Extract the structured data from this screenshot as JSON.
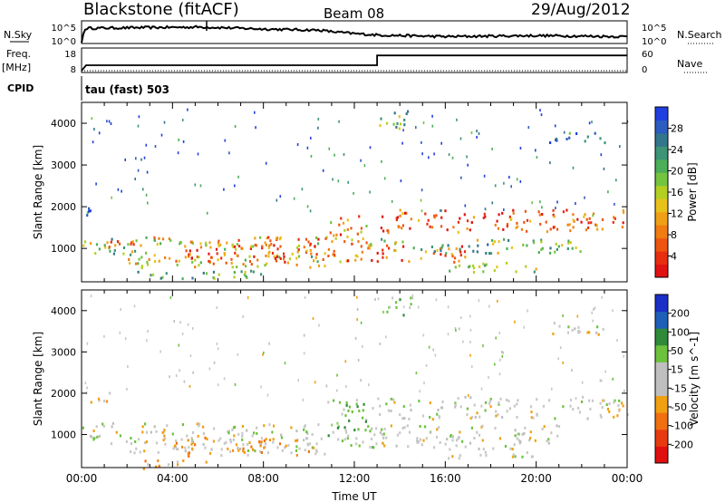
{
  "header": {
    "station": "Blackstone (fitACF)",
    "beam": "Beam 08",
    "date": "29/Aug/2012"
  },
  "top_panel": {
    "nsky_label": "N.Sky",
    "nsearch_label": "N.Search",
    "left_ticks": [
      "10^5",
      "10^0"
    ],
    "right_ticks": [
      "10^5",
      "10^0"
    ],
    "freq_label": "Freq.",
    "freq_unit": "[MHz]",
    "freq_ticks": [
      "18",
      "8"
    ],
    "nave_label": "Nave",
    "nave_ticks": [
      "60",
      "0"
    ],
    "cpid_label": "CPID",
    "cpid_value": "tau (fast) 503"
  },
  "chart_data": [
    {
      "type": "line",
      "name": "noise",
      "x_range": [
        0,
        24
      ],
      "series": [
        {
          "name": "N.Sky",
          "x": [
            0,
            0.1,
            0.2,
            5.3,
            8,
            10.5,
            11,
            12,
            13,
            16,
            20,
            24
          ],
          "y": [
            0,
            0.55,
            0.72,
            0.78,
            0.68,
            0.62,
            0.55,
            0.45,
            0.38,
            0.3,
            0.35,
            0.3
          ]
        },
        {
          "name": "N.Search",
          "x": [
            0,
            24
          ],
          "y": [
            0,
            0
          ]
        }
      ]
    },
    {
      "type": "line",
      "name": "frequency_nave",
      "x_range": [
        0,
        24
      ],
      "series": [
        {
          "name": "Freq.",
          "x": [
            0,
            0.2,
            13,
            13,
            24
          ],
          "y": [
            8,
            10.5,
            10.5,
            15,
            15
          ]
        },
        {
          "name": "Nave",
          "x": [
            0,
            24
          ],
          "y": [
            0,
            0
          ]
        }
      ]
    },
    {
      "type": "heatmap",
      "name": "power",
      "xlabel": "Time UT",
      "ylabel": "Slant Range [km]",
      "x_range": [
        0,
        24
      ],
      "ylim": [
        200,
        4500
      ],
      "x_ticks": [
        "00:00",
        "04:00",
        "08:00",
        "12:00",
        "16:00",
        "20:00",
        "00:00"
      ],
      "y_ticks": [
        1000,
        2000,
        3000,
        4000
      ],
      "colorbar": {
        "label": "Power [dB]",
        "ticks": [
          4,
          8,
          12,
          16,
          20,
          24,
          28
        ],
        "colors": [
          "#1f3fe0",
          "#2c5cc0",
          "#33768c",
          "#3e9476",
          "#4cae58",
          "#74c440",
          "#b3cf22",
          "#e8c21a",
          "#f0a015",
          "#f07c12",
          "#ee5510",
          "#e82e10",
          "#e01212"
        ]
      },
      "regions": [
        {
          "t0": 0.0,
          "t1": 3.2,
          "r0": 850,
          "r1": 1300,
          "level": 0.45
        },
        {
          "t0": 0.8,
          "t1": 2.6,
          "r0": 1000,
          "r1": 1200,
          "level": 0.85
        },
        {
          "t0": 0.2,
          "t1": 1.2,
          "r0": 1800,
          "r1": 2050,
          "level": 0.18
        },
        {
          "t0": 2.0,
          "t1": 10.8,
          "r0": 550,
          "r1": 850,
          "level": 0.55
        },
        {
          "t0": 4.5,
          "t1": 9.5,
          "r0": 650,
          "r1": 1200,
          "level": 0.8
        },
        {
          "t0": 3.0,
          "t1": 10.8,
          "r0": 1000,
          "r1": 1300,
          "level": 0.62
        },
        {
          "t0": 2.0,
          "t1": 8.0,
          "r0": 300,
          "r1": 500,
          "level": 0.3
        },
        {
          "t0": 8.0,
          "t1": 10.8,
          "r0": 750,
          "r1": 1300,
          "level": 0.75
        },
        {
          "t0": 10.8,
          "t1": 12.8,
          "r0": 700,
          "r1": 1800,
          "level": 0.7
        },
        {
          "t0": 11.5,
          "t1": 17.0,
          "r0": 700,
          "r1": 1100,
          "level": 0.8
        },
        {
          "t0": 13.0,
          "t1": 24.0,
          "r0": 1400,
          "r1": 1950,
          "level": 0.82
        },
        {
          "t0": 13.0,
          "t1": 22.0,
          "r0": 900,
          "r1": 1250,
          "level": 0.4
        },
        {
          "t0": 13.0,
          "t1": 14.5,
          "r0": 3900,
          "r1": 4350,
          "level": 0.3
        },
        {
          "t0": 20.5,
          "t1": 23.0,
          "r0": 3550,
          "r1": 3800,
          "level": 0.2
        },
        {
          "t0": 16.0,
          "t1": 20.0,
          "r0": 450,
          "r1": 700,
          "level": 0.4
        }
      ]
    },
    {
      "type": "heatmap",
      "name": "velocity",
      "xlabel": "Time UT",
      "ylabel": "Slant Range [km]",
      "x_range": [
        0,
        24
      ],
      "ylim": [
        200,
        4500
      ],
      "x_ticks": [
        "00:00",
        "04:00",
        "08:00",
        "12:00",
        "16:00",
        "20:00",
        "00:00"
      ],
      "y_ticks": [
        1000,
        2000,
        3000,
        4000
      ],
      "colorbar": {
        "label": "Velocity [m s^-1]",
        "ticks": [
          200,
          100,
          50,
          15,
          -15,
          -50,
          -100,
          -200
        ],
        "colors": [
          "#1a2fc8",
          "#1f5fb8",
          "#2f8a3a",
          "#6cc23c",
          "#bfbfbf",
          "#bfbfbf",
          "#f0a010",
          "#f07010",
          "#e83a10",
          "#e01010"
        ]
      },
      "regions": [
        {
          "t0": 0.0,
          "t1": 10.8,
          "r0": 800,
          "r1": 1300,
          "v": "gray"
        },
        {
          "t0": 2.0,
          "t1": 10.8,
          "r0": 550,
          "r1": 850,
          "v": "gray"
        },
        {
          "t0": 4.0,
          "t1": 10.0,
          "r0": 500,
          "r1": 950,
          "v": "orange"
        },
        {
          "t0": 2.5,
          "t1": 5.5,
          "r0": 200,
          "r1": 450,
          "v": "orange"
        },
        {
          "t0": 0.2,
          "t1": 1.2,
          "r0": 1800,
          "r1": 2050,
          "v": "orange"
        },
        {
          "t0": 10.8,
          "t1": 12.8,
          "r0": 700,
          "r1": 1900,
          "v": "green"
        },
        {
          "t0": 13.0,
          "t1": 24.0,
          "r0": 1400,
          "r1": 1950,
          "v": "gray"
        },
        {
          "t0": 11.5,
          "t1": 21.0,
          "r0": 700,
          "r1": 1250,
          "v": "gray"
        },
        {
          "t0": 13.0,
          "t1": 14.5,
          "r0": 3900,
          "r1": 4350,
          "v": "green"
        },
        {
          "t0": 20.5,
          "t1": 23.0,
          "r0": 3450,
          "r1": 3800,
          "v": "gray"
        },
        {
          "t0": 16.0,
          "t1": 20.0,
          "r0": 450,
          "r1": 700,
          "v": "gray"
        }
      ]
    }
  ]
}
